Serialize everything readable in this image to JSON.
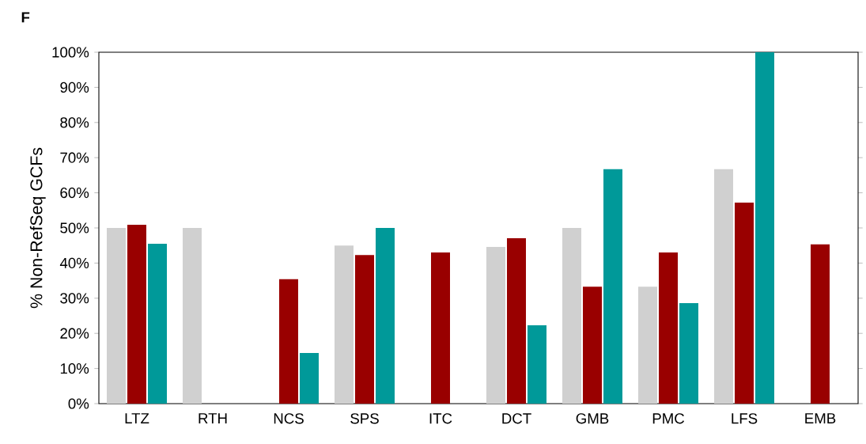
{
  "chart_data": {
    "type": "bar",
    "title": "F",
    "ylabel": "% Non-RefSeq GCFs",
    "categories": [
      "LTZ",
      "RTH",
      "NCS",
      "SPS",
      "ITC",
      "DCT",
      "GMB",
      "PMC",
      "LFS",
      "EMB"
    ],
    "series": [
      {
        "color": "#d0d0d0",
        "values": [
          50,
          50,
          null,
          45,
          null,
          44.6,
          50,
          33.3,
          66.7,
          null
        ]
      },
      {
        "color": "#990000",
        "values": [
          50.9,
          null,
          35.4,
          42.3,
          43,
          47.1,
          33.3,
          43,
          57.2,
          45.3
        ]
      },
      {
        "color": "#009999",
        "values": [
          45.5,
          null,
          14.4,
          50,
          null,
          22.3,
          66.7,
          28.6,
          100,
          null
        ]
      }
    ],
    "ylim": [
      0,
      100
    ],
    "yticks": [
      {
        "value": 0,
        "label": "0%"
      },
      {
        "value": 10,
        "label": "10%"
      },
      {
        "value": 20,
        "label": "20%"
      },
      {
        "value": 30,
        "label": "30%"
      },
      {
        "value": 40,
        "label": "40%"
      },
      {
        "value": 50,
        "label": "50%"
      },
      {
        "value": 60,
        "label": "60%"
      },
      {
        "value": 70,
        "label": "70%"
      },
      {
        "value": 80,
        "label": "80%"
      },
      {
        "value": 90,
        "label": "90%"
      },
      {
        "value": 100,
        "label": "100%"
      }
    ],
    "grid": false
  }
}
